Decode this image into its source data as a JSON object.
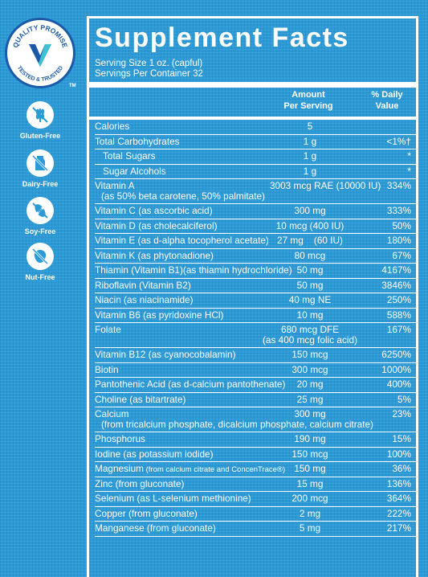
{
  "sidebar": {
    "seal": {
      "top_text": "QUALITY PROMISE",
      "bottom_text": "TESTED & TRUSTED",
      "tm": "TM"
    },
    "badges": [
      {
        "label": "Gluten-Free",
        "icon": "wheat-crossed-icon"
      },
      {
        "label": "Dairy-Free",
        "icon": "milk-crossed-icon"
      },
      {
        "label": "Soy-Free",
        "icon": "soy-crossed-icon"
      },
      {
        "label": "Nut-Free",
        "icon": "nut-crossed-icon"
      }
    ]
  },
  "facts": {
    "title": "Supplement Facts",
    "serving_size": "Serving Size 1 oz. (capful)",
    "servings_per_container": "Servings Per Container 32",
    "header_amount_1": "Amount",
    "header_amount_2": "Per Serving",
    "header_dv_1": "% Daily",
    "header_dv_2": "Value",
    "rows": [
      {
        "name": "Calories",
        "amount": "5",
        "dv": ""
      },
      {
        "name": "Total Carbohydrates",
        "amount": "1 g",
        "dv": "<1%†"
      },
      {
        "name": "Total Sugars",
        "amount": "1 g",
        "dv": "*"
      },
      {
        "name": "Sugar Alcohols",
        "amount": "1 g",
        "dv": "*"
      },
      {
        "name": "Vitamin A",
        "name2": "(as 50% beta carotene, 50% palmitate)",
        "amount": "3003 mcg RAE (10000 IU)",
        "dv": "334%"
      },
      {
        "name": "Vitamin C (as ascorbic acid)",
        "amount": "300 mg",
        "dv": "333%"
      },
      {
        "name": "Vitamin D (as cholecalciferol)",
        "amount": "10 mcg (400 IU)",
        "dv": "50%"
      },
      {
        "name": "Vitamin E (as d-alpha tocopherol acetate)",
        "amount": "27 mg    (60 IU)",
        "dv": "180%"
      },
      {
        "name": "Vitamin K (as phytonadione)",
        "amount": "80 mcg",
        "dv": "67%"
      },
      {
        "name": "Thiamin (Vitamin B1)(as thiamin hydrochloride)",
        "amount": "50 mg",
        "dv": "4167%"
      },
      {
        "name": "Riboflavin (Vitamin B2)",
        "amount": "50 mg",
        "dv": "3846%"
      },
      {
        "name": "Niacin (as niacinamide)",
        "amount": "40 mg NE",
        "dv": "250%"
      },
      {
        "name": "Vitamin B6 (as pyridoxine HCl)",
        "amount": "10 mg",
        "dv": "588%"
      },
      {
        "name": "Folate",
        "amount": "680 mcg DFE",
        "amount2": "(as 400 mcg folic acid)",
        "dv": "167%"
      },
      {
        "name": "Vitamin B12 (as cyanocobalamin)",
        "amount": "150 mcg",
        "dv": "6250%"
      },
      {
        "name": "Biotin",
        "amount": "300 mcg",
        "dv": "1000%"
      },
      {
        "name": "Pantothenic Acid (as d-calcium pantothenate)",
        "amount": "20 mg",
        "dv": "400%"
      },
      {
        "name": "Choline (as bitartrate)",
        "amount": "25 mg",
        "dv": "5%"
      },
      {
        "name": "Calcium",
        "name2": "(from tricalcium phosphate, dicalcium phosphate, calcium citrate)",
        "amount": "300 mg",
        "dv": "23%"
      },
      {
        "name": "Phosphorus",
        "amount": "190 mg",
        "dv": "15%"
      },
      {
        "name": "Iodine (as potassium iodide)",
        "amount": "150 mcg",
        "dv": "100%"
      },
      {
        "name": "Magnesium",
        "name_small": " (from calcium citrate and ConcenTrace®)",
        "amount": "150 mg",
        "dv": "36%"
      },
      {
        "name": "Zinc (from gluconate)",
        "amount": "15 mg",
        "dv": "136%"
      },
      {
        "name": "Selenium (as L-selenium methionine)",
        "amount": "200 mcg",
        "dv": "364%"
      },
      {
        "name": "Copper (from gluconate)",
        "amount": "2 mg",
        "dv": "222%"
      },
      {
        "name": "Manganese (from gluconate)",
        "amount": "5 mg",
        "dv": "217%"
      }
    ]
  },
  "colors": {
    "background": "#2b9ad7",
    "text": "#ffffff",
    "seal_blue": "#1b5aa8",
    "seal_accent": "#3ec1d3"
  }
}
